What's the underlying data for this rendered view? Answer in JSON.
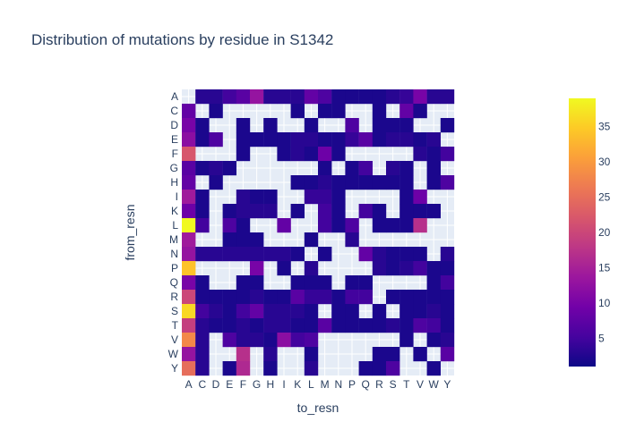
{
  "chart_data": {
    "type": "heatmap",
    "title": "Distribution of mutations by residue in S1342",
    "xlabel": "to_resn",
    "ylabel": "from_resn",
    "x_categories": [
      "A",
      "C",
      "D",
      "E",
      "F",
      "G",
      "H",
      "I",
      "K",
      "L",
      "M",
      "N",
      "P",
      "Q",
      "R",
      "S",
      "T",
      "V",
      "W",
      "Y"
    ],
    "y_categories": [
      "A",
      "C",
      "D",
      "E",
      "F",
      "G",
      "H",
      "I",
      "K",
      "L",
      "M",
      "N",
      "P",
      "Q",
      "R",
      "S",
      "T",
      "V",
      "W",
      "Y"
    ],
    "colorscale": [
      "#0d0887",
      "#46039f",
      "#7201a8",
      "#9c179e",
      "#bd3786",
      "#d8576b",
      "#ed7953",
      "#fb9f3a",
      "#fdca26",
      "#f0f921"
    ],
    "zrange": [
      1,
      39
    ],
    "colorbar_ticks": [
      5,
      10,
      15,
      20,
      25,
      30,
      35
    ],
    "background_color": "#e5ecf6",
    "values": [
      [
        null,
        3,
        3,
        5,
        7,
        13,
        3,
        3,
        3,
        8,
        6,
        2,
        2,
        2,
        2,
        3,
        4,
        10,
        3,
        3
      ],
      [
        8,
        null,
        2,
        null,
        null,
        null,
        null,
        null,
        2,
        null,
        2,
        2,
        null,
        null,
        2,
        null,
        8,
        2,
        null,
        null
      ],
      [
        10,
        2,
        null,
        null,
        2,
        null,
        2,
        null,
        null,
        2,
        null,
        null,
        6,
        null,
        2,
        2,
        2,
        null,
        null,
        2
      ],
      [
        12,
        2,
        6,
        null,
        2,
        2,
        2,
        2,
        3,
        3,
        2,
        2,
        4,
        7,
        2,
        3,
        3,
        2,
        3,
        null
      ],
      [
        22,
        null,
        null,
        null,
        2,
        null,
        null,
        2,
        3,
        2,
        9,
        2,
        null,
        null,
        null,
        null,
        null,
        3,
        2,
        5
      ],
      [
        7,
        2,
        3,
        2,
        null,
        null,
        null,
        null,
        null,
        null,
        2,
        null,
        2,
        5,
        null,
        3,
        2,
        null,
        2,
        null
      ],
      [
        8,
        null,
        2,
        null,
        null,
        null,
        null,
        null,
        2,
        2,
        3,
        2,
        2,
        2,
        2,
        2,
        2,
        null,
        2,
        6
      ],
      [
        14,
        2,
        null,
        null,
        3,
        2,
        2,
        null,
        null,
        4,
        4,
        2,
        null,
        null,
        null,
        null,
        2,
        9,
        null,
        null
      ],
      [
        9,
        2,
        null,
        2,
        3,
        3,
        3,
        null,
        2,
        null,
        5,
        2,
        null,
        5,
        2,
        null,
        2,
        2,
        2,
        null
      ],
      [
        39,
        5,
        null,
        6,
        2,
        null,
        null,
        8,
        null,
        null,
        5,
        2,
        6,
        null,
        2,
        2,
        2,
        17,
        null,
        null
      ],
      [
        14,
        null,
        null,
        2,
        2,
        2,
        null,
        null,
        null,
        2,
        null,
        null,
        3,
        null,
        null,
        null,
        null,
        null,
        null,
        null
      ],
      [
        13,
        3,
        3,
        3,
        3,
        3,
        3,
        3,
        2,
        null,
        2,
        null,
        null,
        8,
        3,
        2,
        2,
        2,
        null,
        3
      ],
      [
        34,
        null,
        null,
        null,
        null,
        10,
        null,
        2,
        null,
        3,
        null,
        null,
        null,
        null,
        3,
        2,
        3,
        5,
        2,
        2
      ],
      [
        10,
        2,
        null,
        null,
        2,
        2,
        null,
        null,
        2,
        2,
        2,
        null,
        2,
        2,
        null,
        null,
        null,
        null,
        2,
        5
      ],
      [
        20,
        2,
        2,
        2,
        2,
        3,
        2,
        2,
        7,
        4,
        4,
        2,
        5,
        5,
        null,
        2,
        2,
        2,
        2,
        2
      ],
      [
        36,
        5,
        3,
        2,
        5,
        8,
        3,
        3,
        3,
        2,
        null,
        2,
        2,
        null,
        2,
        null,
        2,
        2,
        3,
        2
      ],
      [
        19,
        3,
        2,
        2,
        3,
        2,
        3,
        3,
        2,
        2,
        7,
        2,
        2,
        2,
        2,
        3,
        2,
        6,
        5,
        2
      ],
      [
        28,
        3,
        null,
        6,
        3,
        3,
        2,
        12,
        5,
        6,
        null,
        null,
        null,
        null,
        null,
        null,
        2,
        null,
        2,
        3
      ],
      [
        13,
        3,
        null,
        null,
        17,
        null,
        3,
        null,
        null,
        2,
        null,
        null,
        null,
        null,
        2,
        2,
        null,
        2,
        null,
        7
      ],
      [
        25,
        3,
        null,
        2,
        16,
        null,
        2,
        null,
        null,
        3,
        null,
        null,
        null,
        2,
        2,
        6,
        null,
        null,
        2,
        null
      ]
    ]
  }
}
